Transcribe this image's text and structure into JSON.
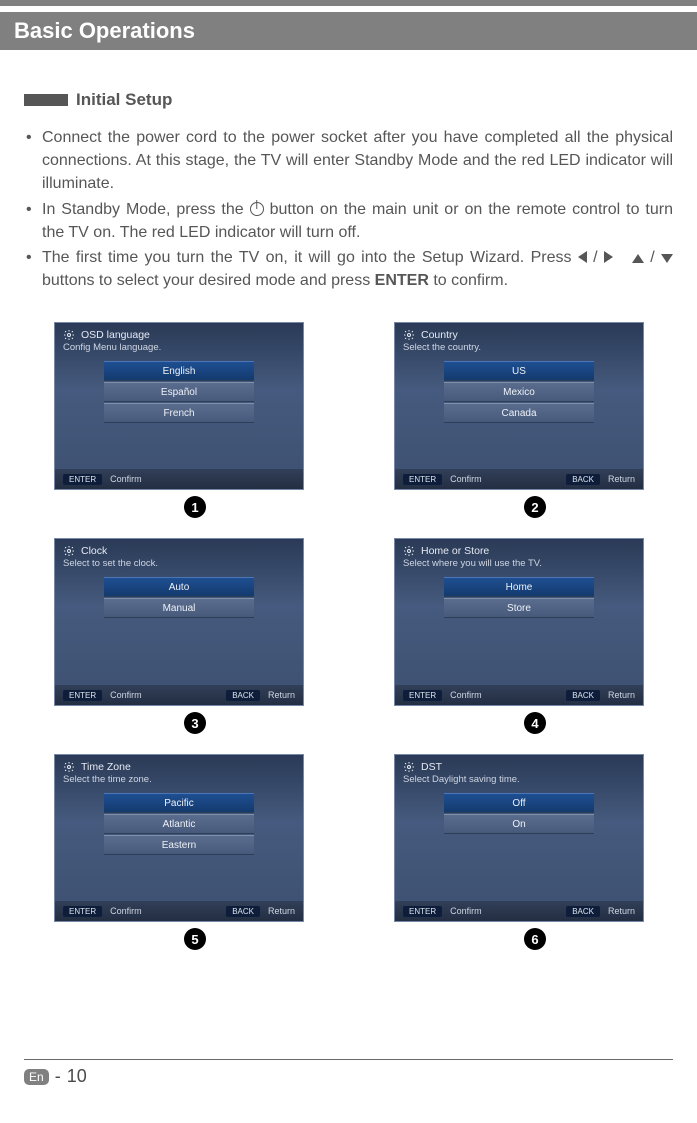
{
  "page": {
    "title": "Basic Operations",
    "section": "Initial Setup",
    "footer_badge": "En",
    "footer_dash": "-",
    "footer_page": "10"
  },
  "bullets": {
    "b1": "Connect the power cord to the power socket after you have completed all the physical connections. At this stage, the TV will enter Standby Mode and the red LED indicator will illuminate.",
    "b2a": "In Standby Mode, press the ",
    "b2b": " button on the main unit or on the remote control to turn the TV on. The red LED indicator will turn off.",
    "b3a": "The first time you turn the TV on, it will go into the Setup Wizard. Press ",
    "b3b": " buttons to select your desired mode and press ",
    "b3_enter": "ENTER",
    "b3c": " to confirm."
  },
  "panels": [
    {
      "title": "OSD language",
      "subtitle": "Config  Menu language.",
      "options": [
        "English",
        "Español",
        "French"
      ],
      "selected": 0,
      "confirm": "Confirm",
      "has_back": false,
      "back": "",
      "step": "1"
    },
    {
      "title": "Country",
      "subtitle": "Select the country.",
      "options": [
        "US",
        "Mexico",
        "Canada"
      ],
      "selected": 0,
      "confirm": "Confirm",
      "has_back": true,
      "back": "Return",
      "step": "2"
    },
    {
      "title": "Clock",
      "subtitle": "Select to set the clock.",
      "options": [
        "Auto",
        "Manual"
      ],
      "selected": 0,
      "confirm": "Confirm",
      "has_back": true,
      "back": "Return",
      "step": "3"
    },
    {
      "title": "Home or Store",
      "subtitle": "Select where you will use the TV.",
      "options": [
        "Home",
        "Store"
      ],
      "selected": 0,
      "confirm": "Confirm",
      "has_back": true,
      "back": "Return",
      "step": "4"
    },
    {
      "title": "Time  Zone",
      "subtitle": "Select the time zone.",
      "options": [
        "Pacific",
        "Atlantic",
        "Eastern"
      ],
      "selected": 0,
      "confirm": "Confirm",
      "has_back": true,
      "back": "Return",
      "step": "5"
    },
    {
      "title": "DST",
      "subtitle": "Select Daylight saving time.",
      "options": [
        "Off",
        "On"
      ],
      "selected": 0,
      "confirm": "Confirm",
      "has_back": true,
      "back": "Return",
      "step": "6"
    }
  ],
  "labels": {
    "enter_btn": "ENTER",
    "back_btn": "BACK"
  },
  "colors": {
    "header_gray": "#808080",
    "text": "#565656",
    "panel_bg_top": "#2a3a56",
    "panel_bg_mid": "#455a7e",
    "opt_sel_top": "#1f4f92",
    "opt_sel_bot": "#133a6e"
  }
}
